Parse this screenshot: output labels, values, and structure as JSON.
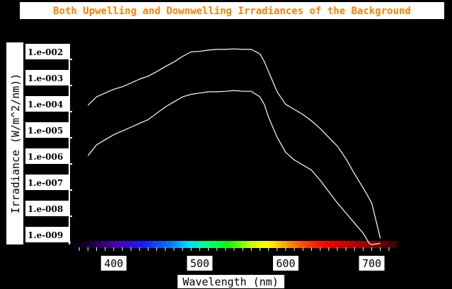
{
  "chart_data": {
    "type": "line",
    "title": "Both Upwelling and Downwelling Irradiances of the Background",
    "xlabel": "Wavelength (nm)",
    "ylabel": "Irradiance (W/m^2/nm))",
    "xlim": [
      350,
      730
    ],
    "x_ticks": [
      "400",
      "500",
      "600",
      "700"
    ],
    "y_ticks": [
      "1.e-002",
      "1.e-003",
      "1.e-004",
      "1.e-005",
      "1.e-006",
      "1.e-007",
      "1.e-008",
      "1.e-009"
    ],
    "ylim_log10": [
      -9.5,
      -1.5
    ],
    "log_scale_y": true,
    "grid": false,
    "colors": {
      "background": "#000000",
      "title_bg": "#ffffff",
      "title_text": "#ff7f00",
      "line": "#ffffff"
    },
    "series": [
      {
        "points": [
          [
            370,
            -3.93
          ],
          [
            380,
            -3.6
          ],
          [
            390,
            -3.45
          ],
          [
            400,
            -3.3
          ],
          [
            410,
            -3.2
          ],
          [
            420,
            -3.05
          ],
          [
            430,
            -2.9
          ],
          [
            440,
            -2.78
          ],
          [
            450,
            -2.6
          ],
          [
            460,
            -2.4
          ],
          [
            470,
            -2.22
          ],
          [
            480,
            -2.0
          ],
          [
            490,
            -1.82
          ],
          [
            500,
            -1.8
          ],
          [
            510,
            -1.75
          ],
          [
            520,
            -1.72
          ],
          [
            530,
            -1.72
          ],
          [
            540,
            -1.7
          ],
          [
            550,
            -1.72
          ],
          [
            560,
            -1.72
          ],
          [
            570,
            -1.9
          ],
          [
            575,
            -2.2
          ],
          [
            580,
            -2.6
          ],
          [
            590,
            -3.4
          ],
          [
            600,
            -3.9
          ],
          [
            610,
            -4.1
          ],
          [
            620,
            -4.3
          ],
          [
            630,
            -4.55
          ],
          [
            640,
            -4.85
          ],
          [
            650,
            -5.2
          ],
          [
            660,
            -5.55
          ],
          [
            670,
            -6.05
          ],
          [
            680,
            -6.65
          ],
          [
            690,
            -7.2
          ],
          [
            700,
            -7.8
          ],
          [
            705,
            -8.5
          ],
          [
            710,
            -9.2
          ]
        ]
      },
      {
        "points": [
          [
            370,
            -5.93
          ],
          [
            380,
            -5.5
          ],
          [
            390,
            -5.3
          ],
          [
            400,
            -5.1
          ],
          [
            410,
            -4.95
          ],
          [
            420,
            -4.8
          ],
          [
            430,
            -4.65
          ],
          [
            440,
            -4.5
          ],
          [
            450,
            -4.25
          ],
          [
            460,
            -4.0
          ],
          [
            470,
            -3.8
          ],
          [
            480,
            -3.6
          ],
          [
            490,
            -3.5
          ],
          [
            500,
            -3.45
          ],
          [
            510,
            -3.4
          ],
          [
            520,
            -3.4
          ],
          [
            530,
            -3.38
          ],
          [
            540,
            -3.35
          ],
          [
            550,
            -3.38
          ],
          [
            560,
            -3.38
          ],
          [
            570,
            -3.6
          ],
          [
            575,
            -3.9
          ],
          [
            580,
            -4.4
          ],
          [
            590,
            -5.2
          ],
          [
            600,
            -5.8
          ],
          [
            610,
            -6.1
          ],
          [
            620,
            -6.3
          ],
          [
            630,
            -6.5
          ],
          [
            640,
            -6.9
          ],
          [
            650,
            -7.35
          ],
          [
            660,
            -7.8
          ],
          [
            670,
            -8.2
          ],
          [
            680,
            -8.6
          ],
          [
            690,
            -9.0
          ],
          [
            697,
            -9.4
          ],
          [
            700,
            -9.45
          ],
          [
            710,
            -9.4
          ]
        ]
      }
    ]
  }
}
